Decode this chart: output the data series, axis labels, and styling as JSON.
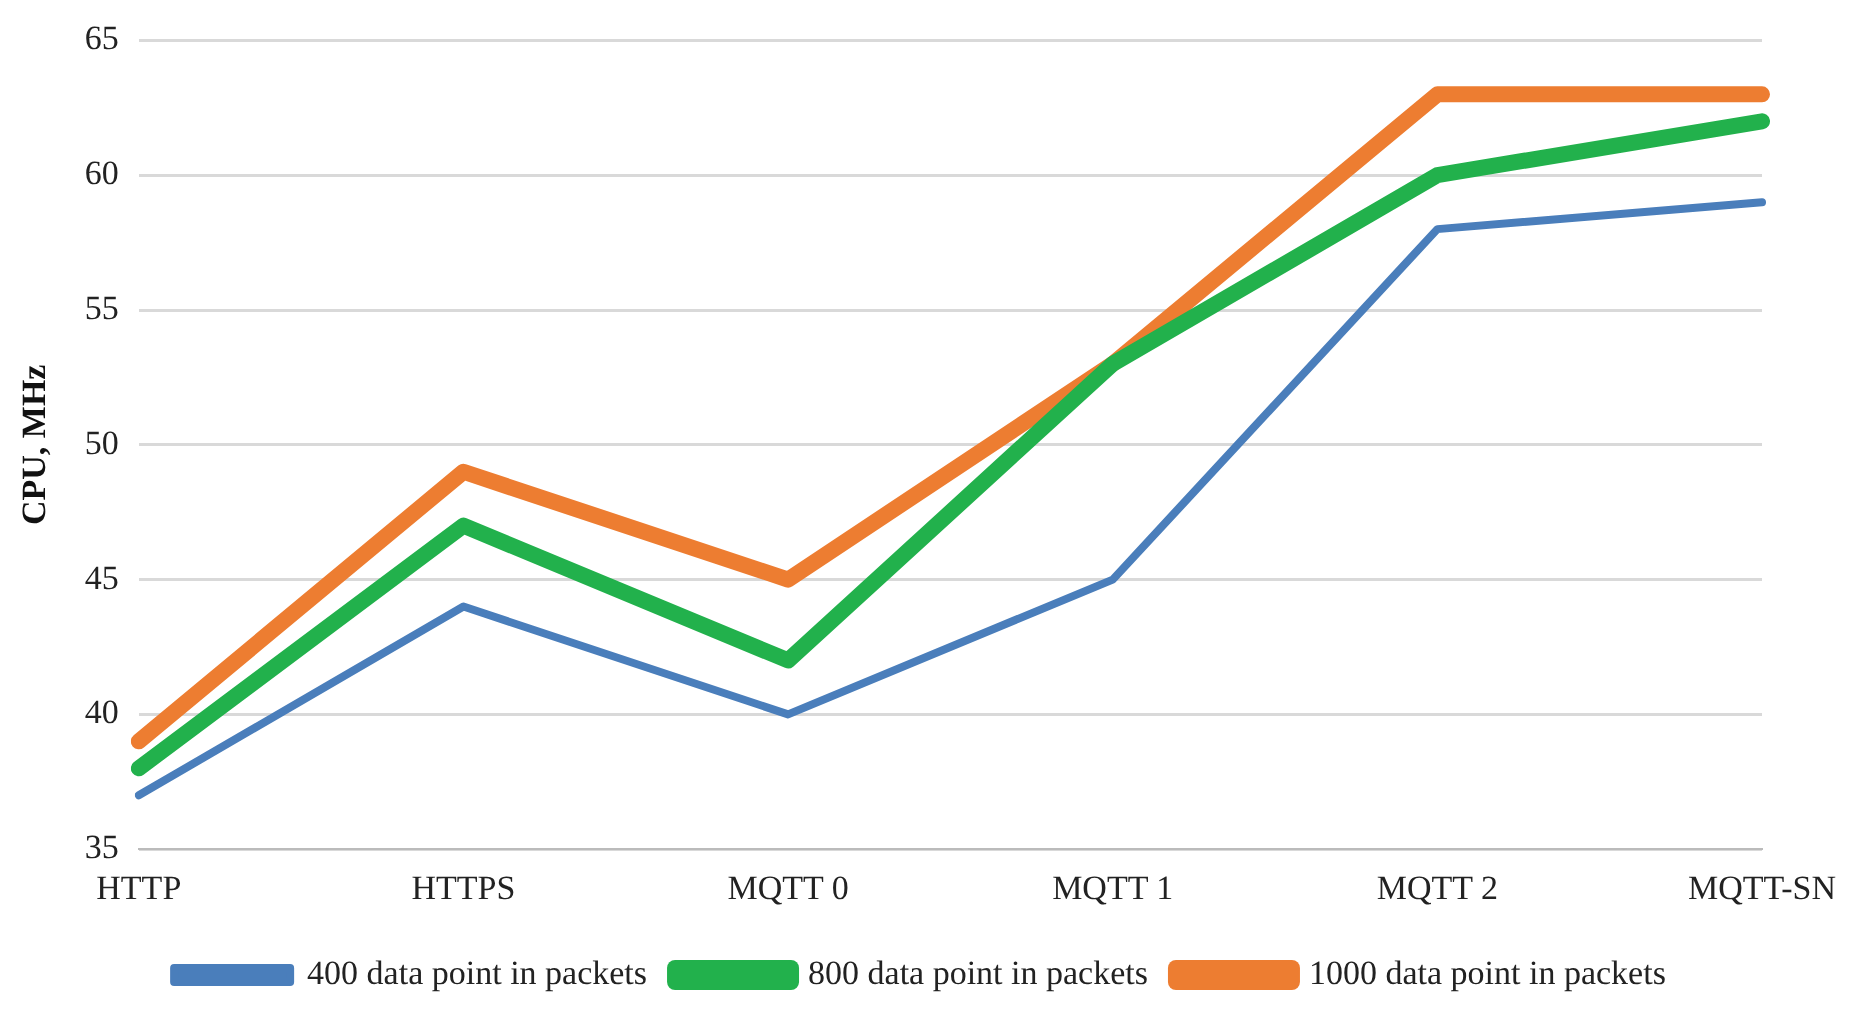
{
  "chart_data": {
    "type": "line",
    "ylabel": "CPU, MHz",
    "categories": [
      "HTTP",
      "HTTPS",
      "MQTT 0",
      "MQTT 1",
      "MQTT 2",
      "MQTT-SN"
    ],
    "series": [
      {
        "name": "400 data point in packets",
        "color": "#4a7ebb",
        "values": [
          37,
          44,
          40,
          45,
          58,
          59
        ]
      },
      {
        "name": "800 data point in packets",
        "color": "#22b14c",
        "values": [
          38,
          47,
          42,
          53,
          60,
          62
        ]
      },
      {
        "name": "1000 data point in packets",
        "color": "#ed7d31",
        "values": [
          39,
          49,
          45,
          53,
          63,
          63
        ]
      }
    ],
    "ylim": [
      35,
      65
    ],
    "yticks": [
      35,
      40,
      45,
      50,
      55,
      60,
      65
    ],
    "grid": "y",
    "legend": "bottom",
    "marker": "none",
    "line_style": "solid"
  }
}
